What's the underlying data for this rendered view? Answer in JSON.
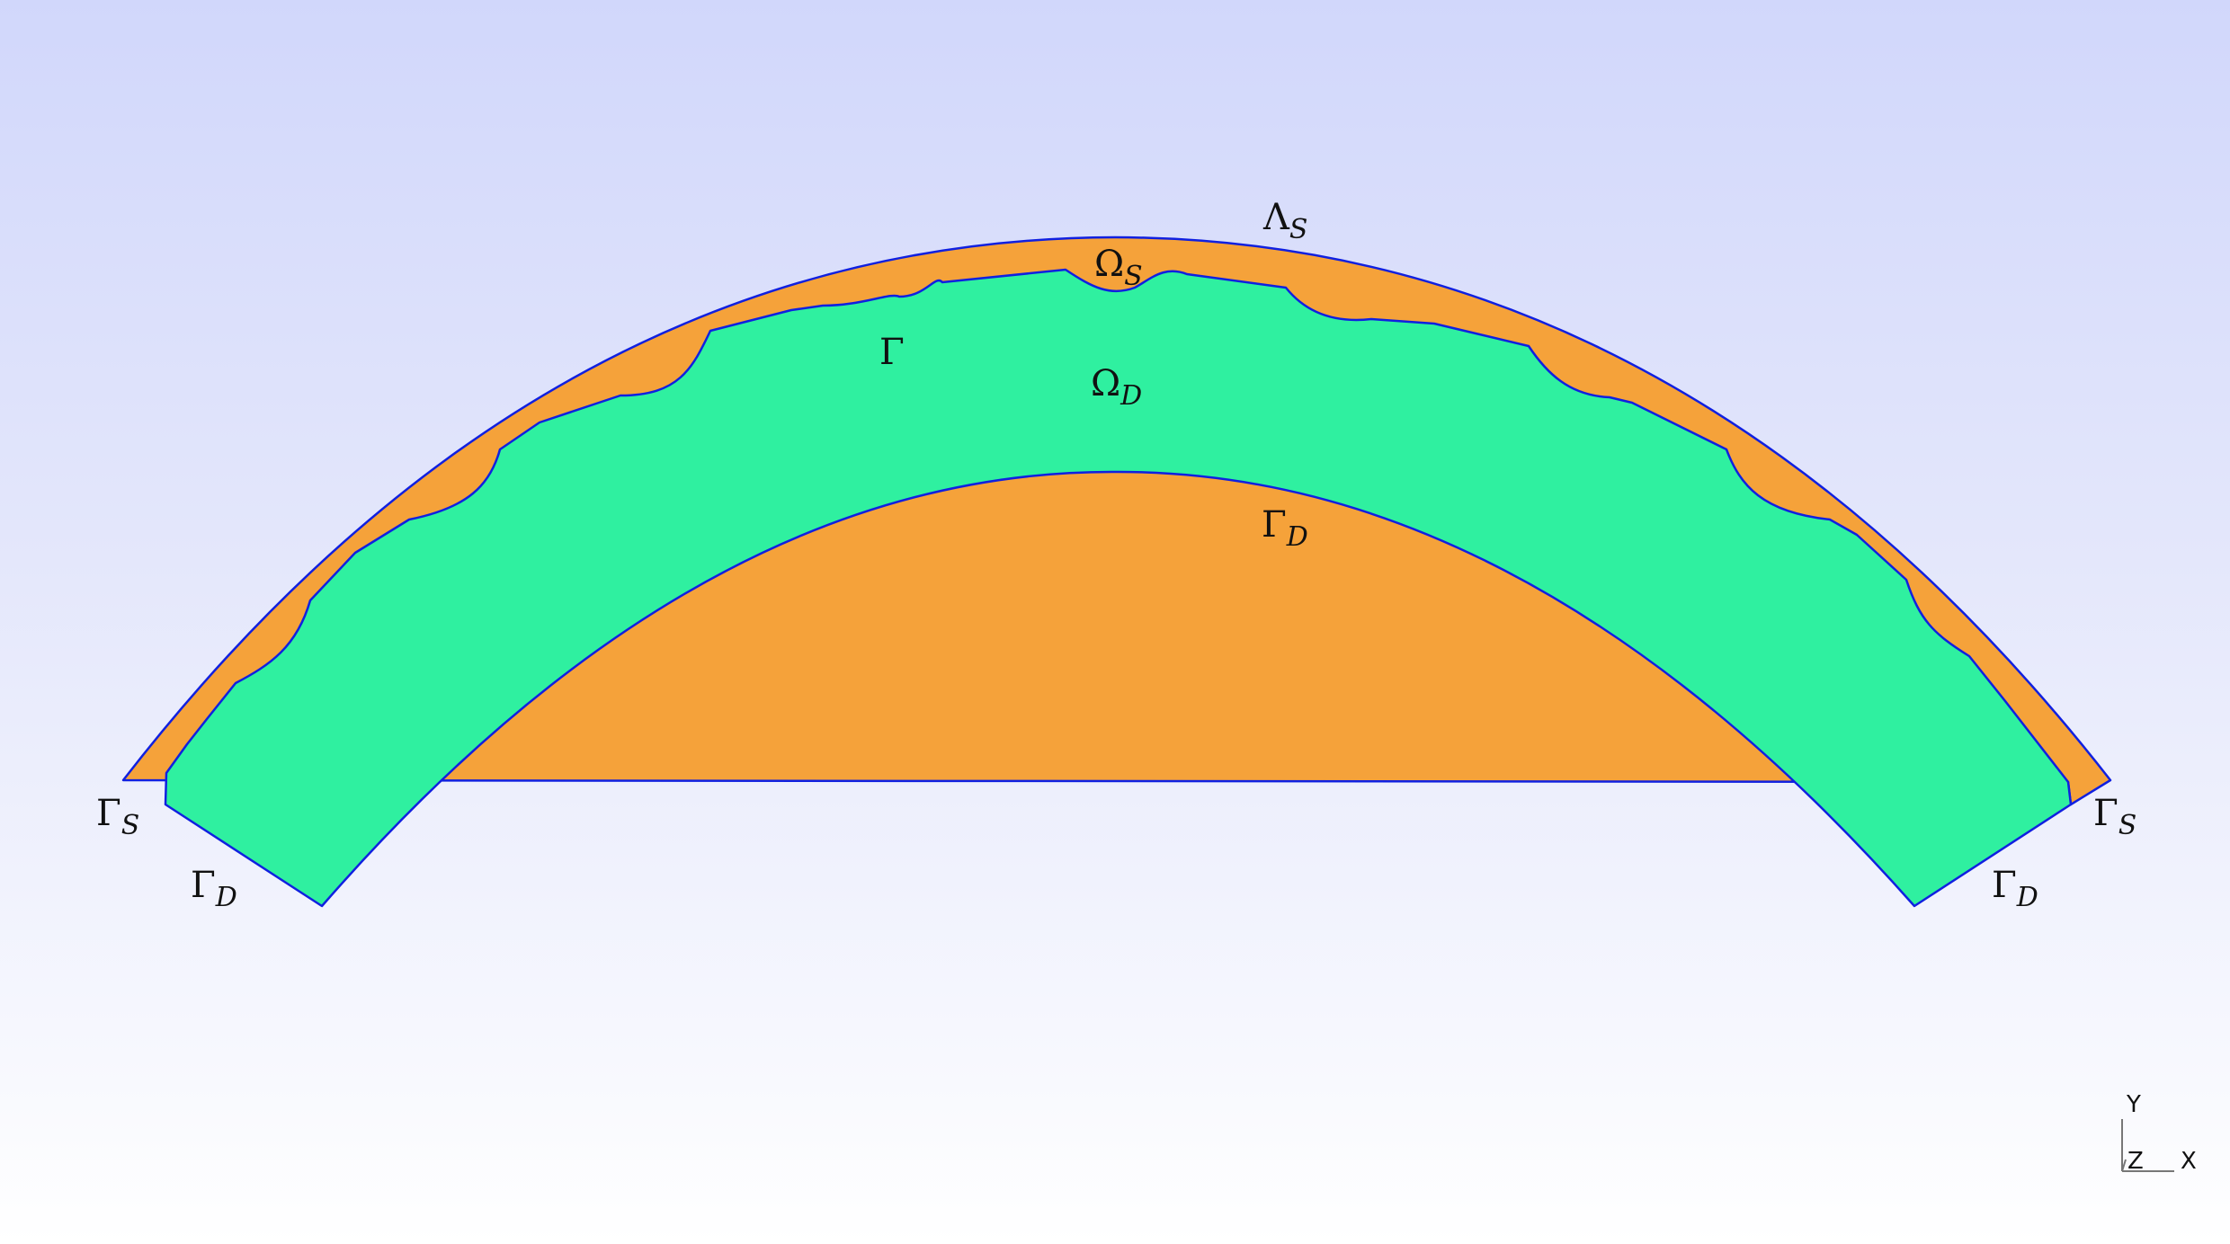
{
  "colors": {
    "stokes_region": "#f5a23a",
    "darcy_region": "#2ff0a0",
    "boundary_line": "#1020e0",
    "background_top": "#d1d7fb",
    "background_bottom": "#ffffff"
  },
  "labels": {
    "lambda_s": {
      "main": "Λ",
      "sub": "S"
    },
    "omega_s": {
      "main": "Ω",
      "sub": "S"
    },
    "gamma": {
      "main": "Γ",
      "sub": ""
    },
    "omega_d": {
      "main": "Ω",
      "sub": "D"
    },
    "gamma_d_inner": {
      "main": "Γ",
      "sub": "D"
    },
    "gamma_s_left": {
      "main": "Γ",
      "sub": "S"
    },
    "gamma_d_left": {
      "main": "Γ",
      "sub": "D"
    },
    "gamma_s_right": {
      "main": "Γ",
      "sub": "S"
    },
    "gamma_d_right": {
      "main": "Γ",
      "sub": "D"
    }
  },
  "axes_triad": {
    "y": "Y",
    "z": "Z",
    "x": "X"
  }
}
